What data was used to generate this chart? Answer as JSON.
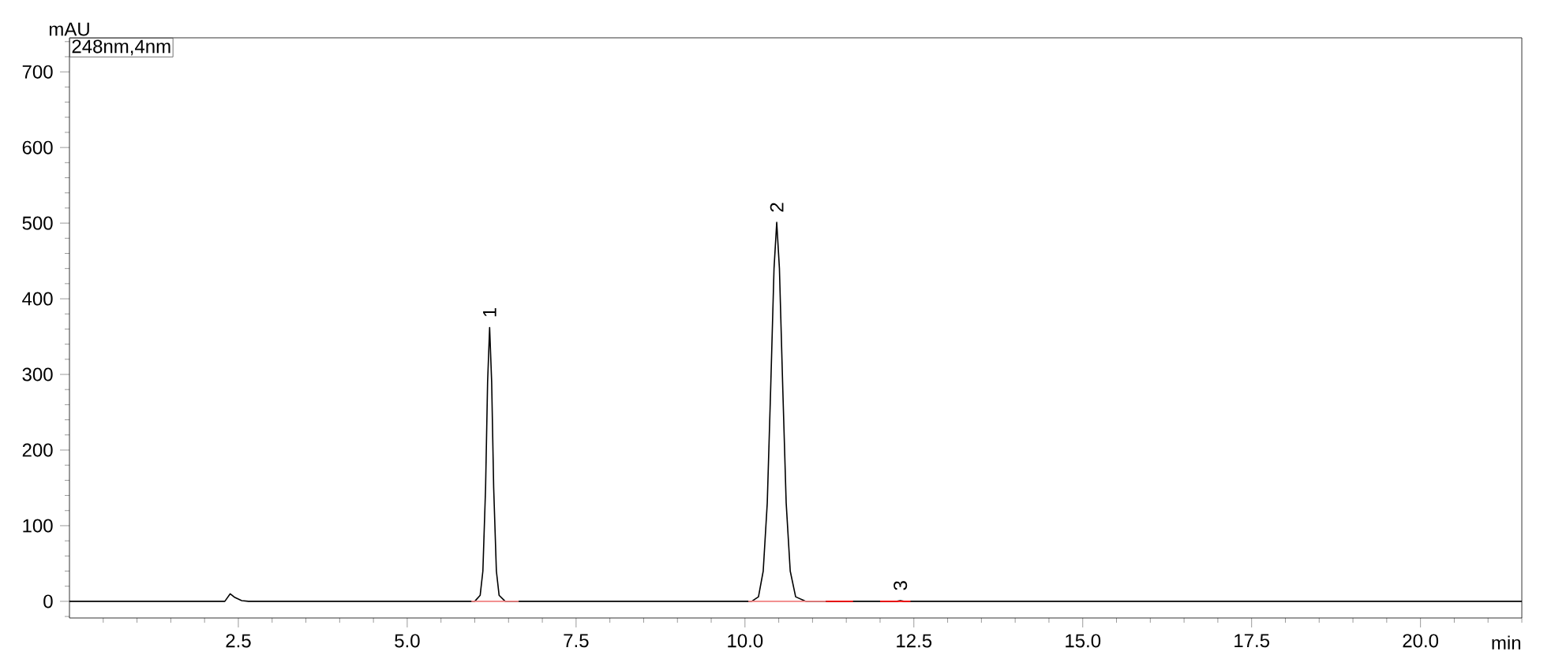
{
  "chart_data": {
    "type": "line",
    "xlabel": "min",
    "ylabel": "mAU",
    "xlim": [
      0,
      21.5
    ],
    "ylim": [
      -22,
      745
    ],
    "xticks": [
      {
        "value": 0.5,
        "label": null
      },
      {
        "value": 1,
        "label": null
      },
      {
        "value": 1.5,
        "label": null
      },
      {
        "value": 2,
        "label": null
      },
      2.5,
      {
        "value": 3,
        "label": null
      },
      {
        "value": 3.5,
        "label": null
      },
      {
        "value": 4,
        "label": null
      },
      {
        "value": 4.5,
        "label": null
      },
      {
        "value": 5,
        "label": "5.0"
      },
      {
        "value": 5.5,
        "label": null
      },
      {
        "value": 6,
        "label": null
      },
      {
        "value": 6.5,
        "label": null
      },
      {
        "value": 7,
        "label": null
      },
      7.5,
      {
        "value": 8,
        "label": null
      },
      {
        "value": 8.5,
        "label": null
      },
      {
        "value": 9,
        "label": null
      },
      {
        "value": 9.5,
        "label": null
      },
      {
        "value": 10,
        "label": "10.0"
      },
      {
        "value": 10.5,
        "label": null
      },
      {
        "value": 11,
        "label": null
      },
      {
        "value": 11.5,
        "label": null
      },
      {
        "value": 12,
        "label": null
      },
      12.5,
      {
        "value": 13,
        "label": null
      },
      {
        "value": 13.5,
        "label": null
      },
      {
        "value": 14,
        "label": null
      },
      {
        "value": 14.5,
        "label": null
      },
      {
        "value": 15,
        "label": "15.0"
      },
      {
        "value": 15.5,
        "label": null
      },
      {
        "value": 16,
        "label": null
      },
      {
        "value": 16.5,
        "label": null
      },
      {
        "value": 17,
        "label": null
      },
      17.5,
      {
        "value": 18,
        "label": null
      },
      {
        "value": 18.5,
        "label": null
      },
      {
        "value": 19,
        "label": null
      },
      {
        "value": 19.5,
        "label": null
      },
      {
        "value": 20,
        "label": "20.0"
      },
      {
        "value": 20.5,
        "label": null
      },
      {
        "value": 21,
        "label": null
      },
      {
        "value": 21.5,
        "label": null
      }
    ],
    "yticks": [
      {
        "value": -20,
        "label": null
      },
      0,
      {
        "value": 20,
        "label": null
      },
      {
        "value": 40,
        "label": null
      },
      {
        "value": 60,
        "label": null
      },
      {
        "value": 80,
        "label": null
      },
      100,
      {
        "value": 120,
        "label": null
      },
      {
        "value": 140,
        "label": null
      },
      {
        "value": 160,
        "label": null
      },
      {
        "value": 180,
        "label": null
      },
      200,
      {
        "value": 220,
        "label": null
      },
      {
        "value": 240,
        "label": null
      },
      {
        "value": 260,
        "label": null
      },
      {
        "value": 280,
        "label": null
      },
      300,
      {
        "value": 320,
        "label": null
      },
      {
        "value": 340,
        "label": null
      },
      {
        "value": 360,
        "label": null
      },
      {
        "value": 380,
        "label": null
      },
      400,
      {
        "value": 420,
        "label": null
      },
      {
        "value": 440,
        "label": null
      },
      {
        "value": 460,
        "label": null
      },
      {
        "value": 480,
        "label": null
      },
      500,
      {
        "value": 520,
        "label": null
      },
      {
        "value": 540,
        "label": null
      },
      {
        "value": 560,
        "label": null
      },
      {
        "value": 580,
        "label": null
      },
      600,
      {
        "value": 620,
        "label": null
      },
      {
        "value": 640,
        "label": null
      },
      {
        "value": 660,
        "label": null
      },
      {
        "value": 680,
        "label": null
      },
      700,
      {
        "value": 720,
        "label": null
      },
      {
        "value": 740,
        "label": null
      }
    ],
    "marker": "none",
    "series": [
      {
        "color": "#000000",
        "x": [
          0,
          2.3,
          2.38,
          2.45,
          2.55,
          2.65,
          6.0,
          6.08,
          6.12,
          6.16,
          6.19,
          6.22,
          6.25,
          6.28,
          6.32,
          6.36,
          6.45,
          10.1,
          10.2,
          10.27,
          10.33,
          10.38,
          10.43,
          10.47,
          10.51,
          10.56,
          10.61,
          10.67,
          10.75,
          10.9,
          12.25,
          12.3,
          12.35,
          21.5
        ],
        "values": [
          0,
          0,
          10,
          5,
          1,
          0,
          0,
          8,
          40,
          150,
          290,
          362,
          290,
          150,
          40,
          8,
          0,
          0,
          6,
          40,
          130,
          280,
          440,
          501,
          440,
          280,
          130,
          40,
          6,
          0,
          0,
          1,
          0,
          0
        ]
      },
      {
        "color": "#f08080",
        "x": [
          5.95,
          6.65
        ],
        "values": [
          0,
          0
        ]
      },
      {
        "color": "#f08080",
        "x": [
          10.05,
          11.2
        ],
        "values": [
          0,
          0
        ]
      },
      {
        "color": "#ff0000",
        "x": [
          11.2,
          11.6
        ],
        "values": [
          0,
          0
        ]
      },
      {
        "color": "#ff0000",
        "x": [
          12.0,
          12.45
        ],
        "values": [
          0,
          0
        ]
      }
    ],
    "annotations": [
      "248nm,4nm",
      {
        "text": "1",
        "x": 6.22,
        "y": 362
      },
      {
        "text": "2",
        "x": 10.47,
        "y": 501
      },
      {
        "text": "3",
        "x": 12.3,
        "y": 1
      }
    ]
  }
}
